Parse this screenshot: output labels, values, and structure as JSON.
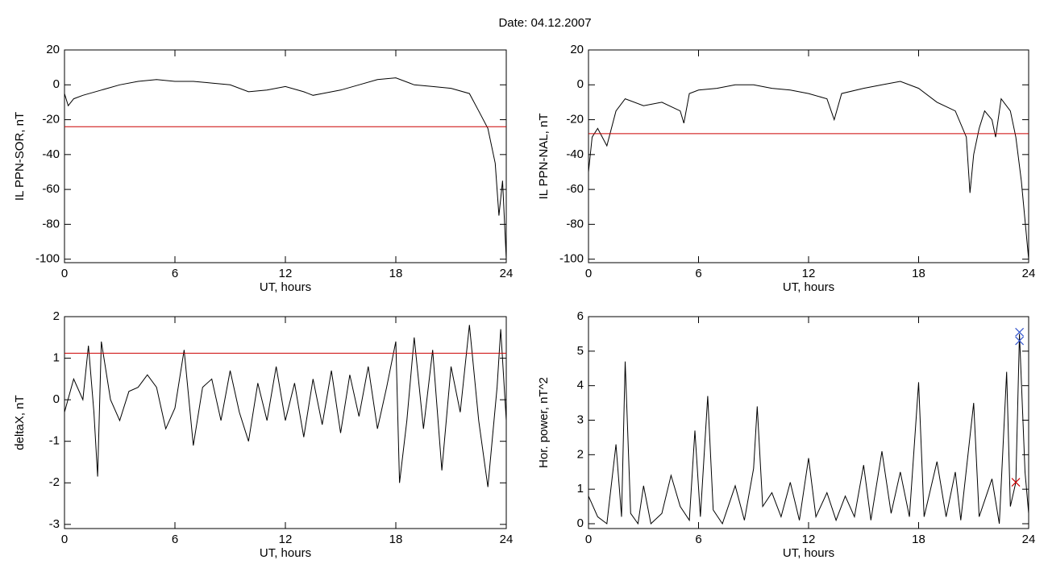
{
  "title": "Date:  04.12.2007",
  "chart_data": [
    {
      "type": "line",
      "xlabel": "UT, hours",
      "ylabel": "IL PPN-SOR, nT",
      "xlim": [
        0,
        24
      ],
      "xticks": [
        0,
        6,
        12,
        18,
        24
      ],
      "ylim": [
        -102,
        20
      ],
      "yticks": [
        20,
        0,
        -20,
        -40,
        -60,
        -80,
        -100
      ],
      "color": "#000000",
      "threshold": -24,
      "threshold_color": "#cc0000",
      "x": [
        0,
        0.2,
        0.5,
        1,
        2,
        3,
        4,
        5,
        6,
        7,
        8,
        9,
        10,
        11,
        12,
        13,
        13.5,
        14,
        15,
        16,
        17,
        18,
        19,
        20,
        21,
        22,
        22.5,
        23,
        23.4,
        23.6,
        23.8,
        24
      ],
      "values": [
        -5,
        -12,
        -8,
        -6,
        -3,
        0,
        2,
        3,
        2,
        2,
        1,
        0,
        -4,
        -3,
        -1,
        -4,
        -6,
        -5,
        -3,
        0,
        3,
        4,
        0,
        -1,
        -2,
        -5,
        -15,
        -25,
        -45,
        -75,
        -55,
        -100
      ]
    },
    {
      "type": "line",
      "xlabel": "UT, hours",
      "ylabel": "IL PPN-NAL, nT",
      "xlim": [
        0,
        24
      ],
      "xticks": [
        0,
        6,
        12,
        18,
        24
      ],
      "ylim": [
        -102,
        20
      ],
      "yticks": [
        20,
        0,
        -20,
        -40,
        -60,
        -80,
        -100
      ],
      "color": "#000000",
      "threshold": -28,
      "threshold_color": "#cc0000",
      "x": [
        0,
        0.2,
        0.5,
        1,
        1.5,
        2,
        3,
        4,
        5,
        5.2,
        5.5,
        6,
        7,
        8,
        9,
        10,
        11,
        12,
        13,
        13.4,
        13.8,
        15,
        16,
        17,
        18,
        19,
        20,
        20.6,
        20.8,
        21,
        21.3,
        21.6,
        22,
        22.2,
        22.5,
        23,
        23.3,
        23.6,
        24
      ],
      "values": [
        -50,
        -30,
        -25,
        -35,
        -15,
        -8,
        -12,
        -10,
        -15,
        -22,
        -5,
        -3,
        -2,
        0,
        0,
        -2,
        -3,
        -5,
        -8,
        -20,
        -5,
        -2,
        0,
        2,
        -2,
        -10,
        -15,
        -30,
        -62,
        -40,
        -25,
        -15,
        -20,
        -30,
        -8,
        -15,
        -30,
        -55,
        -100
      ]
    },
    {
      "type": "line",
      "xlabel": "UT, hours",
      "ylabel": "deltaX, nT",
      "xlim": [
        0,
        24
      ],
      "xticks": [
        0,
        6,
        12,
        18,
        24
      ],
      "ylim": [
        -3.1,
        2
      ],
      "yticks": [
        2,
        1,
        0,
        -1,
        -2,
        -3
      ],
      "color": "#000000",
      "threshold": 1.12,
      "threshold_color": "#cc0000",
      "x": [
        0,
        0.5,
        1,
        1.3,
        1.6,
        1.8,
        2,
        2.5,
        3,
        3.5,
        4,
        4.5,
        5,
        5.5,
        6,
        6.5,
        7,
        7.5,
        8,
        8.5,
        9,
        9.5,
        10,
        10.5,
        11,
        11.5,
        12,
        12.5,
        13,
        13.5,
        14,
        14.5,
        15,
        15.5,
        16,
        16.5,
        17,
        17.5,
        18,
        18.2,
        18.6,
        19,
        19.5,
        20,
        20.5,
        21,
        21.5,
        22,
        22.5,
        23,
        23.5,
        23.7,
        24
      ],
      "values": [
        -0.3,
        0.5,
        0,
        1.3,
        -0.3,
        -1.85,
        1.4,
        0,
        -0.5,
        0.2,
        0.3,
        0.6,
        0.3,
        -0.7,
        -0.2,
        1.2,
        -1.1,
        0.3,
        0.5,
        -0.5,
        0.7,
        -0.3,
        -1.0,
        0.4,
        -0.5,
        0.8,
        -0.5,
        0.4,
        -0.9,
        0.5,
        -0.6,
        0.7,
        -0.8,
        0.6,
        -0.4,
        0.8,
        -0.7,
        0.3,
        1.4,
        -2.0,
        -0.5,
        1.5,
        -0.7,
        1.2,
        -1.7,
        0.8,
        -0.3,
        1.8,
        -0.5,
        -2.1,
        0.3,
        1.7,
        -0.5
      ]
    },
    {
      "type": "line",
      "xlabel": "UT, hours",
      "ylabel": "Hor. power, nT^2",
      "xlim": [
        0,
        24
      ],
      "xticks": [
        0,
        6,
        12,
        18,
        24
      ],
      "ylim": [
        -0.14,
        6
      ],
      "yticks": [
        6,
        5,
        4,
        3,
        2,
        1,
        0
      ],
      "color": "#000000",
      "x": [
        0,
        0.5,
        1,
        1.5,
        1.8,
        2,
        2.3,
        2.7,
        3,
        3.4,
        4,
        4.5,
        5,
        5.5,
        5.8,
        6.1,
        6.5,
        6.8,
        7.3,
        8,
        8.5,
        9,
        9.2,
        9.5,
        10,
        10.5,
        11,
        11.5,
        12,
        12.4,
        13,
        13.5,
        14,
        14.5,
        15,
        15.4,
        16,
        16.5,
        17,
        17.5,
        18,
        18.3,
        19,
        19.5,
        20,
        20.3,
        21,
        21.3,
        22,
        22.4,
        22.8,
        23,
        23.3,
        23.5,
        23.8,
        24
      ],
      "values": [
        0.8,
        0.2,
        0,
        2.3,
        0.2,
        4.7,
        0.3,
        0,
        1.1,
        0,
        0.3,
        1.4,
        0.5,
        0.1,
        2.7,
        0.2,
        3.7,
        0.4,
        0,
        1.1,
        0.1,
        1.6,
        3.4,
        0.5,
        0.9,
        0.2,
        1.2,
        0.1,
        1.9,
        0.2,
        0.9,
        0.1,
        0.8,
        0.2,
        1.7,
        0.1,
        2.1,
        0.3,
        1.5,
        0.2,
        4.1,
        0.2,
        1.8,
        0.2,
        1.5,
        0.1,
        3.5,
        0.2,
        1.3,
        0,
        4.4,
        0.5,
        1.2,
        5.5,
        1.5,
        0.3
      ],
      "markers": [
        {
          "x": 23.5,
          "y": 5.55,
          "color": "#3355cc"
        },
        {
          "x": 23.5,
          "y": 5.3,
          "color": "#3355cc"
        },
        {
          "x": 23.3,
          "y": 1.2,
          "color": "#cc0000"
        }
      ]
    }
  ]
}
